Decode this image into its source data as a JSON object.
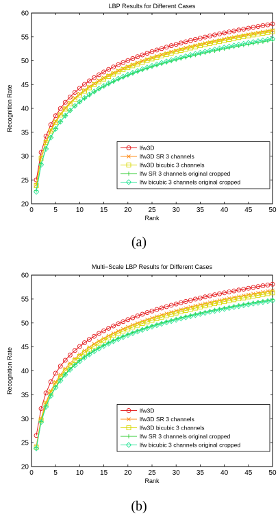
{
  "chart_data": [
    {
      "type": "line",
      "caption": "(a)",
      "title": "LBP Results for Different Cases",
      "xlabel": "Rank",
      "ylabel": "Recognition Rate",
      "xlim": [
        0,
        50
      ],
      "ylim": [
        20,
        60
      ],
      "xticks": [
        0,
        5,
        10,
        15,
        20,
        25,
        30,
        35,
        40,
        45,
        50
      ],
      "yticks": [
        20,
        25,
        30,
        35,
        40,
        45,
        50,
        55,
        60
      ],
      "grid": false,
      "legend_position": "bottom-right",
      "series": [
        {
          "name": "lfw3D",
          "color": "#e41a1c",
          "marker": "circle",
          "start": 25.0,
          "end": 57.7
        },
        {
          "name": "lfw3D SR 3 channels",
          "color": "#ff8c1a",
          "marker": "x",
          "start": 24.0,
          "end": 56.4
        },
        {
          "name": "lfw3D bicubic 3 channels",
          "color": "#d8d800",
          "marker": "square",
          "start": 23.8,
          "end": 56.1
        },
        {
          "name": "lfw SR 3 channels original cropped",
          "color": "#33cc33",
          "marker": "plus",
          "start": 22.8,
          "end": 54.3
        },
        {
          "name": "lfw bicubic 3 channels original cropped",
          "color": "#2ee59a",
          "marker": "diamond",
          "start": 22.5,
          "end": 54.6
        }
      ]
    },
    {
      "type": "line",
      "caption": "(b)",
      "title": "Multi−Scale LBP Results for Different Cases",
      "xlabel": "Rank",
      "ylabel": "Recognition Rate",
      "xlim": [
        0,
        50
      ],
      "ylim": [
        20,
        60
      ],
      "xticks": [
        0,
        5,
        10,
        15,
        20,
        25,
        30,
        35,
        40,
        45,
        50
      ],
      "yticks": [
        20,
        25,
        30,
        35,
        40,
        45,
        50,
        55,
        60
      ],
      "grid": false,
      "legend_position": "bottom-right",
      "series": [
        {
          "name": "lfw3D",
          "color": "#e41a1c",
          "marker": "circle",
          "start": 26.5,
          "end": 58.1
        },
        {
          "name": "lfw3D SR 3 channels",
          "color": "#ff8c1a",
          "marker": "x",
          "start": 24.3,
          "end": 56.8
        },
        {
          "name": "lfw3D bicubic 3 channels",
          "color": "#d8d800",
          "marker": "square",
          "start": 24.0,
          "end": 56.3
        },
        {
          "name": "lfw SR 3 channels original cropped",
          "color": "#33cc33",
          "marker": "plus",
          "start": 23.9,
          "end": 54.9
        },
        {
          "name": "lfw bicubic 3 channels original cropped",
          "color": "#2ee59a",
          "marker": "diamond",
          "start": 23.8,
          "end": 54.7
        }
      ]
    }
  ]
}
